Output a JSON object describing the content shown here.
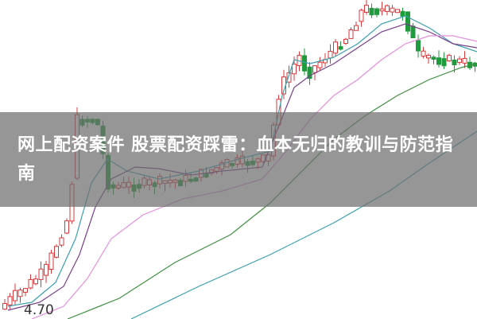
{
  "article": {
    "title": "网上配资案件 股票配资踩雷：血本无归的教训与防范指南"
  },
  "chart": {
    "type": "candlestick",
    "price_label": "4.70",
    "colors": {
      "up": "#d9383a",
      "down": "#1f9a3c",
      "ma_purple": "#7a3d8c",
      "ma_pink": "#e58ee0",
      "ma_green": "#3f8f3f",
      "ma_teal": "#3aa0b0",
      "banner": "#6e6e6e"
    }
  }
}
